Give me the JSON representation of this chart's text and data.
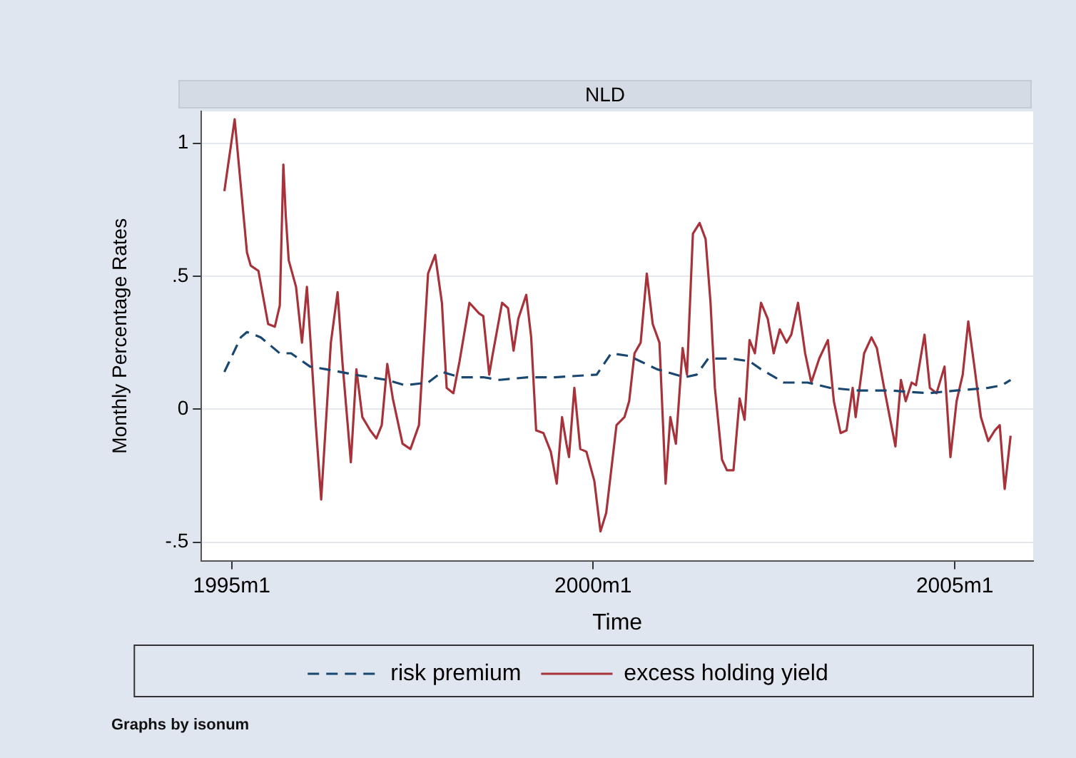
{
  "chart_data": {
    "type": "line",
    "title": "NLD",
    "xlabel": "Time",
    "ylabel": "Monthly Percentage Rates",
    "xlim": [
      "1994-08-01",
      "2006-02-01"
    ],
    "xticks": [
      {
        "value": "1995-01",
        "label": "1995m1"
      },
      {
        "value": "2000-01",
        "label": "2000m1"
      },
      {
        "value": "2005-01",
        "label": "2005m1"
      }
    ],
    "ylim": [
      -0.57,
      1.12
    ],
    "yticks": [
      {
        "value": -0.5,
        "label": "-.5"
      },
      0,
      {
        "value": 0.5,
        "label": ".5"
      },
      1
    ],
    "grid": "y",
    "legend": "bottom",
    "marker": "none",
    "series": [
      {
        "name": "risk premium",
        "color": "#1a476f",
        "line_style": "dashed",
        "x": [
          "1994-11-25",
          "1995-02-16",
          "1995-03-19",
          "1995-05-28",
          "1995-09-01",
          "1995-10-28",
          "1996-02-01",
          "1996-04-22",
          "1996-09-10",
          "1997-02-22",
          "1997-05-25",
          "1997-09-19",
          "1997-11-28",
          "1998-03-01",
          "1998-06-25",
          "1998-09-16",
          "1999-02-04",
          "1999-06-22",
          "2000-01-19",
          "2000-04-01",
          "2000-07-01",
          "2000-11-19",
          "2001-04-07",
          "2001-06-07",
          "2001-08-04",
          "2001-12-01",
          "2002-03-01",
          "2002-04-28",
          "2002-08-22",
          "2002-12-19",
          "2003-04-13",
          "2003-09-01",
          "2004-02-13",
          "2004-08-19",
          "2005-01-07",
          "2005-06-19",
          "2005-08-28",
          "2005-10-10"
        ],
        "values": [
          0.14,
          0.27,
          0.29,
          0.27,
          0.21,
          0.21,
          0.16,
          0.15,
          0.13,
          0.11,
          0.09,
          0.1,
          0.14,
          0.12,
          0.12,
          0.11,
          0.12,
          0.12,
          0.13,
          0.21,
          0.2,
          0.15,
          0.12,
          0.13,
          0.19,
          0.19,
          0.18,
          0.15,
          0.1,
          0.1,
          0.08,
          0.07,
          0.07,
          0.06,
          0.07,
          0.08,
          0.09,
          0.11
        ]
      },
      {
        "name": "excess holding yield",
        "color": "#a8323a",
        "line_style": "solid",
        "x": [
          "1994-11-25",
          "1995-01-16",
          "1995-03-19",
          "1995-04-07",
          "1995-05-16",
          "1995-07-04",
          "1995-08-07",
          "1995-09-01",
          "1995-09-19",
          "1995-10-01",
          "1995-10-16",
          "1995-11-22",
          "1995-12-22",
          "1996-01-16",
          "1996-02-01",
          "1996-03-01",
          "1996-03-28",
          "1996-05-16",
          "1996-06-19",
          "1996-07-13",
          "1996-08-25",
          "1996-09-22",
          "1996-10-22",
          "1996-12-01",
          "1997-01-01",
          "1997-01-28",
          "1997-02-25",
          "1997-03-25",
          "1997-05-13",
          "1997-06-22",
          "1997-08-04",
          "1997-09-19",
          "1997-10-25",
          "1997-11-28",
          "1997-12-22",
          "1998-01-25",
          "1998-02-25",
          "1998-04-16",
          "1998-06-04",
          "1998-06-25",
          "1998-07-25",
          "1998-08-10",
          "1998-09-28",
          "1998-10-28",
          "1998-11-25",
          "1998-12-19",
          "1999-01-28",
          "1999-02-22",
          "1999-03-19",
          "1999-04-25",
          "1999-06-01",
          "1999-07-01",
          "1999-07-28",
          "1999-08-19",
          "1999-09-01",
          "1999-09-28",
          "1999-10-28",
          "1999-11-28",
          "2000-01-07",
          "2000-02-07",
          "2000-03-07",
          "2000-04-28",
          "2000-06-07",
          "2000-07-01",
          "2000-07-28",
          "2000-08-28",
          "2000-09-28",
          "2000-10-28",
          "2000-12-01",
          "2001-01-01",
          "2001-01-25",
          "2001-02-22",
          "2001-03-28",
          "2001-04-19",
          "2001-05-19",
          "2001-06-22",
          "2001-07-22",
          "2001-08-16",
          "2001-09-07",
          "2001-10-13",
          "2001-11-07",
          "2001-12-10",
          "2002-01-10",
          "2002-02-04",
          "2002-03-01",
          "2002-03-28",
          "2002-04-28",
          "2002-06-01",
          "2002-07-01",
          "2002-08-01",
          "2002-09-04",
          "2002-09-28",
          "2002-11-01",
          "2002-12-07",
          "2003-01-07",
          "2003-02-16",
          "2003-04-01",
          "2003-05-01",
          "2003-06-04",
          "2003-07-04",
          "2003-08-04",
          "2003-08-19",
          "2003-10-01",
          "2003-11-07",
          "2003-12-04",
          "2004-01-10",
          "2004-02-10",
          "2004-03-07",
          "2004-04-04",
          "2004-04-28",
          "2004-05-28",
          "2004-06-19",
          "2004-08-01",
          "2004-08-28",
          "2004-10-01",
          "2004-11-10",
          "2004-12-10",
          "2005-01-10",
          "2005-02-10",
          "2005-03-10",
          "2005-04-10",
          "2005-05-13",
          "2005-06-19",
          "2005-07-22",
          "2005-08-16",
          "2005-09-10",
          "2005-10-10"
        ],
        "values": [
          0.82,
          1.09,
          0.59,
          0.54,
          0.52,
          0.32,
          0.31,
          0.39,
          0.92,
          0.73,
          0.56,
          0.46,
          0.25,
          0.46,
          0.28,
          -0.06,
          -0.34,
          0.25,
          0.44,
          0.18,
          -0.2,
          0.15,
          -0.03,
          -0.08,
          -0.11,
          -0.06,
          0.17,
          0.04,
          -0.13,
          -0.15,
          -0.06,
          0.51,
          0.58,
          0.4,
          0.08,
          0.06,
          0.18,
          0.4,
          0.36,
          0.35,
          0.13,
          0.2,
          0.4,
          0.38,
          0.22,
          0.34,
          0.43,
          0.27,
          -0.08,
          -0.09,
          -0.16,
          -0.28,
          -0.03,
          -0.13,
          -0.18,
          0.08,
          -0.15,
          -0.16,
          -0.27,
          -0.46,
          -0.39,
          -0.06,
          -0.03,
          0.03,
          0.21,
          0.25,
          0.51,
          0.32,
          0.25,
          -0.28,
          -0.03,
          -0.13,
          0.23,
          0.13,
          0.66,
          0.7,
          0.64,
          0.4,
          0.08,
          -0.19,
          -0.23,
          -0.23,
          0.04,
          -0.04,
          0.26,
          0.21,
          0.4,
          0.34,
          0.21,
          0.3,
          0.25,
          0.28,
          0.4,
          0.21,
          0.1,
          0.19,
          0.26,
          0.03,
          -0.09,
          -0.08,
          0.08,
          -0.03,
          0.21,
          0.27,
          0.23,
          0.08,
          -0.04,
          -0.14,
          0.11,
          0.03,
          0.1,
          0.09,
          0.28,
          0.08,
          0.06,
          0.16,
          -0.18,
          0.03,
          0.13,
          0.33,
          0.16,
          -0.03,
          -0.12,
          -0.08,
          -0.06,
          -0.3,
          -0.1
        ]
      }
    ],
    "annotations": [
      "Graphs by isonum"
    ]
  }
}
